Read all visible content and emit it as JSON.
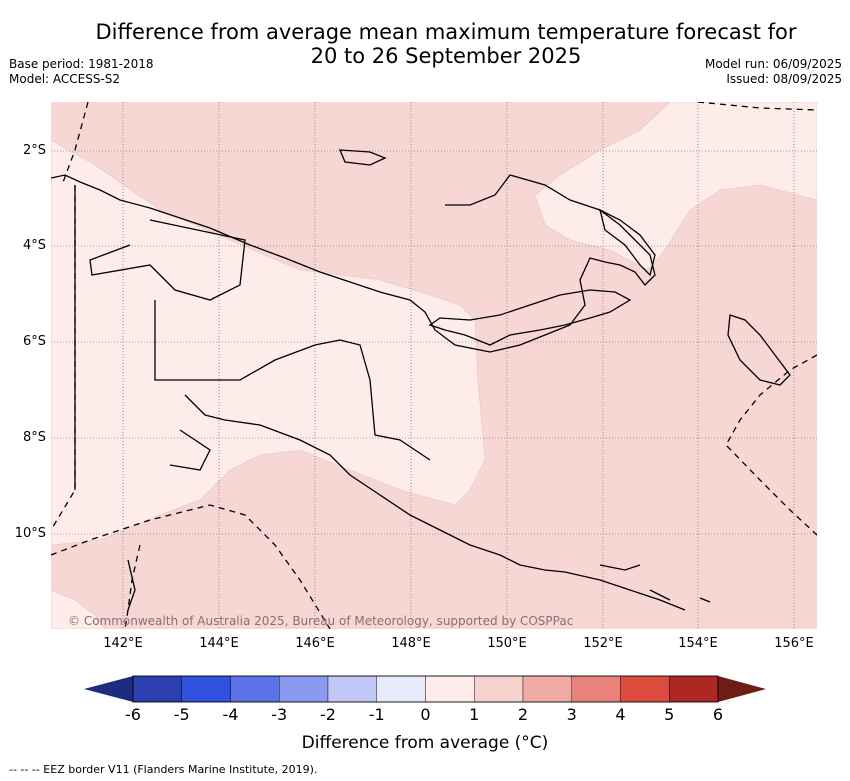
{
  "title_line1": "Difference from average mean maximum temperature forecast for",
  "title_line2": "20 to 26 September 2025",
  "base_period": "Base period: 1981-2018",
  "model": "Model: ACCESS-S2",
  "model_run": "Model run: 06/09/2025",
  "issued": "Issued: 08/09/2025",
  "lon_ticks": [
    "142°E",
    "144°E",
    "146°E",
    "148°E",
    "150°E",
    "152°E",
    "154°E",
    "156°E"
  ],
  "lat_ticks": [
    "2°S",
    "4°S",
    "6°S",
    "8°S",
    "10°S"
  ],
  "credit": "© Commonwealth of Australia 2025, Bureau of Meteorology, supported by COSPPac",
  "colorbar": {
    "ticks": [
      "-6",
      "-5",
      "-4",
      "-3",
      "-2",
      "-1",
      "0",
      "1",
      "2",
      "3",
      "4",
      "5",
      "6"
    ],
    "colors": [
      "#2b3fb0",
      "#3050e0",
      "#5b72e8",
      "#8a9af0",
      "#c2c8f5",
      "#e8ebfb",
      "#fdecea",
      "#f6d2cf",
      "#f0aaa5",
      "#e8827b",
      "#dc4b3e",
      "#ad2822"
    ],
    "extend_low": "#1e2c80",
    "extend_high": "#6e1d16",
    "title": "Difference from average (°C)"
  },
  "legend_note": "--  --  -- EEZ border V11 (Flanders Marine Institute, 2019).",
  "field_colors": {
    "bin_0_1": "#fdecea",
    "bin_1_2": "#f6d7d4"
  }
}
